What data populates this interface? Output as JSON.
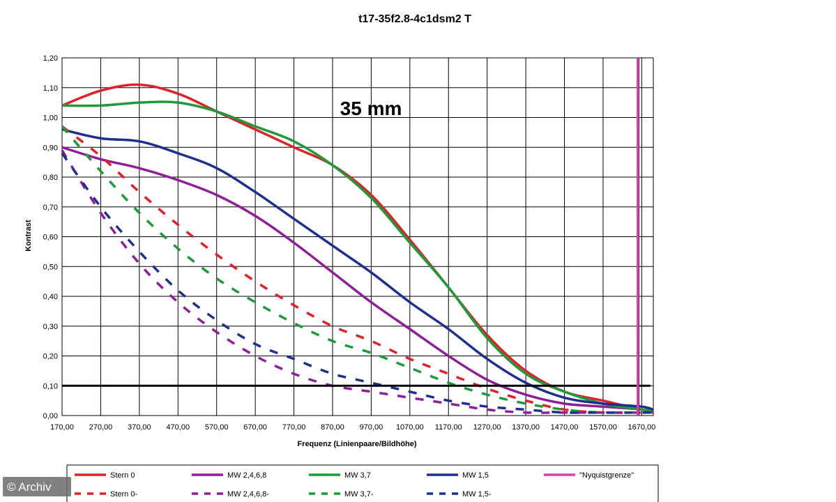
{
  "chart_data": {
    "type": "line",
    "title": "t17-35f2.8-4c1dsm2 T",
    "annotation": "35 mm",
    "xlabel": "Frequenz (Linienpaare/Bildhöhe)",
    "ylabel": "Kontrast",
    "xlim": [
      170,
      1700
    ],
    "ylim": [
      0,
      1.2
    ],
    "x_ticks": [
      "170,00",
      "270,00",
      "370,00",
      "470,00",
      "570,00",
      "670,00",
      "770,00",
      "870,00",
      "970,00",
      "1070,00",
      "1170,00",
      "1270,00",
      "1370,00",
      "1470,00",
      "1570,00",
      "1670,00"
    ],
    "y_ticks": [
      "0,00",
      "0,10",
      "0,20",
      "0,30",
      "0,40",
      "0,50",
      "0,60",
      "0,70",
      "0,80",
      "0,90",
      "1,00",
      "1,10",
      "1,20"
    ],
    "reference_line_y": 0.1,
    "nyquist_x": 1660,
    "x": [
      170,
      270,
      370,
      470,
      570,
      670,
      770,
      870,
      970,
      1070,
      1170,
      1270,
      1370,
      1470,
      1570,
      1670,
      1700
    ],
    "series": [
      {
        "name": "Stern 0",
        "color": "#e0202a",
        "dash": false,
        "values": [
          1.04,
          1.09,
          1.11,
          1.08,
          1.02,
          0.96,
          0.9,
          0.84,
          0.74,
          0.59,
          0.43,
          0.27,
          0.15,
          0.08,
          0.05,
          0.02,
          0.02
        ]
      },
      {
        "name": "MW 2,4,6,8",
        "color": "#8e1f96",
        "dash": false,
        "values": [
          0.9,
          0.86,
          0.83,
          0.79,
          0.74,
          0.67,
          0.58,
          0.48,
          0.38,
          0.29,
          0.2,
          0.12,
          0.07,
          0.04,
          0.03,
          0.02,
          0.01
        ]
      },
      {
        "name": "MW 3,7",
        "color": "#1f9a3a",
        "dash": false,
        "values": [
          1.04,
          1.04,
          1.05,
          1.05,
          1.02,
          0.97,
          0.92,
          0.84,
          0.73,
          0.58,
          0.43,
          0.26,
          0.14,
          0.08,
          0.04,
          0.02,
          0.02
        ]
      },
      {
        "name": "MW 1,5",
        "color": "#1f2f8e",
        "dash": false,
        "values": [
          0.96,
          0.93,
          0.92,
          0.88,
          0.83,
          0.75,
          0.66,
          0.57,
          0.48,
          0.38,
          0.29,
          0.19,
          0.11,
          0.06,
          0.04,
          0.03,
          0.02
        ]
      },
      {
        "name": "\"Nyquistgrenze\"",
        "color": "#d63fa6",
        "dash": false,
        "vertical_at": 1660
      },
      {
        "name": "Stern 0-",
        "color": "#e0202a",
        "dash": true,
        "values": [
          0.97,
          0.87,
          0.75,
          0.64,
          0.54,
          0.45,
          0.37,
          0.3,
          0.25,
          0.19,
          0.14,
          0.09,
          0.05,
          0.02,
          0.01,
          0.01,
          0.01
        ]
      },
      {
        "name": "MW 2,4,6,8-",
        "color": "#8e1f96",
        "dash": true,
        "values": [
          0.89,
          0.68,
          0.51,
          0.38,
          0.28,
          0.2,
          0.14,
          0.1,
          0.08,
          0.06,
          0.04,
          0.02,
          0.01,
          0.01,
          0.01,
          0.01,
          0.01
        ]
      },
      {
        "name": "MW 3,7-",
        "color": "#1f9a3a",
        "dash": true,
        "values": [
          0.97,
          0.82,
          0.68,
          0.56,
          0.46,
          0.38,
          0.31,
          0.25,
          0.21,
          0.16,
          0.11,
          0.07,
          0.04,
          0.02,
          0.01,
          0.01,
          0.01
        ]
      },
      {
        "name": "MW 1,5-",
        "color": "#1f2f8e",
        "dash": true,
        "values": [
          0.88,
          0.7,
          0.55,
          0.42,
          0.32,
          0.24,
          0.19,
          0.14,
          0.11,
          0.08,
          0.05,
          0.03,
          0.02,
          0.01,
          0.01,
          0.01,
          0.01
        ]
      }
    ],
    "grid": true,
    "legend_position": "bottom"
  },
  "watermark": "© Archiv"
}
